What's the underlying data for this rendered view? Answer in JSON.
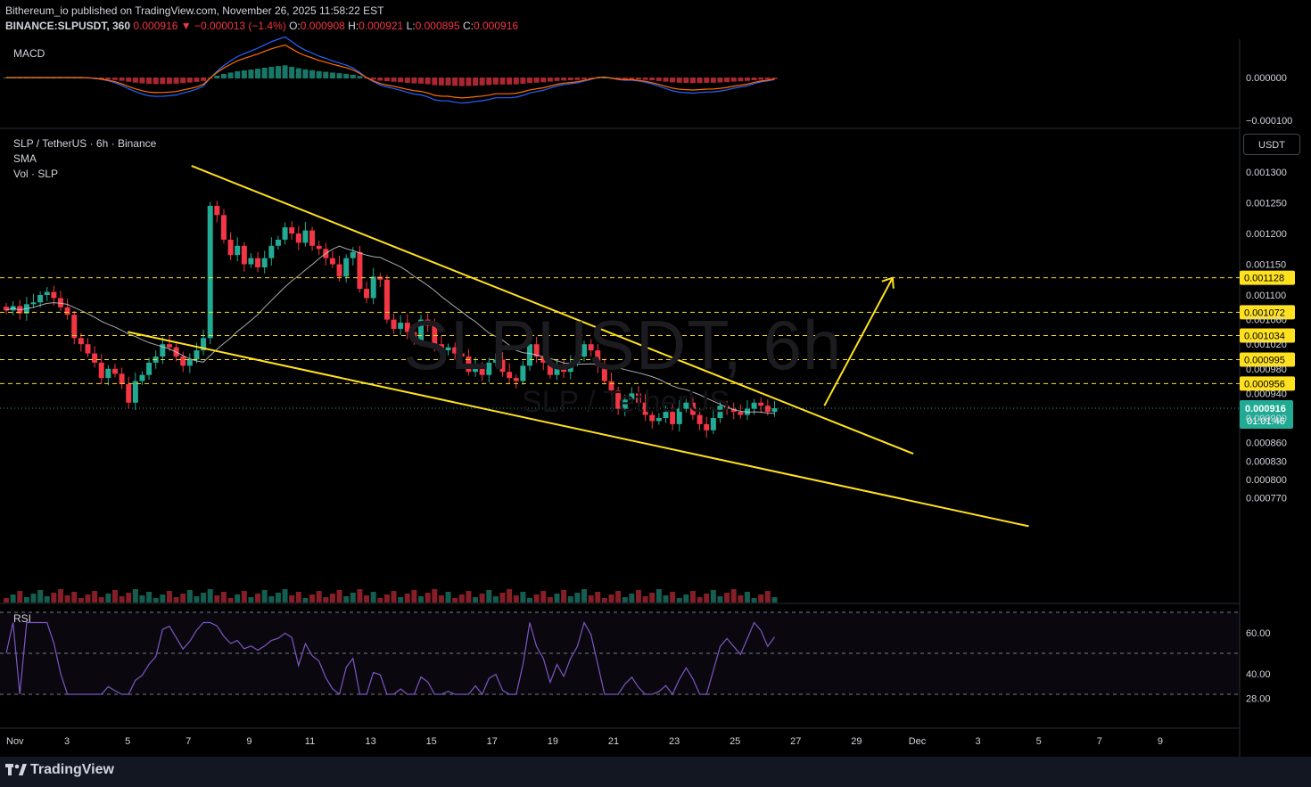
{
  "header": {
    "publisher_line": "Bithereum_io published on TradingView.com, November 26, 2025 11:58:22 EST",
    "symbol": "BINANCE:SLPUSDT, 360",
    "last": "0.000916",
    "change": "▼ −0.000013 (−1.4%)",
    "o_label": "O:",
    "o": "0.000908",
    "h_label": "H:",
    "h": "0.000921",
    "l_label": "L:",
    "l": "0.000895",
    "c_label": "C:",
    "c": "0.000916"
  },
  "panes": {
    "macd_label": "MACD",
    "price_title": "SLP / TetherUS · 6h · Binance",
    "sma_label": "SMA",
    "vol_label": "Vol · SLP",
    "rsi_label": "RSI"
  },
  "watermark": {
    "main": "SLPUSDT, 6h",
    "sub": "SLP / TetherUS"
  },
  "currency_button": "USDT",
  "footer": {
    "brand": "TradingView"
  },
  "colors": {
    "up": "#22ab94",
    "down": "#f23645",
    "trendline": "#ffe11f",
    "macd": "#2962ff",
    "signal": "#ff6d00",
    "rsi": "#7e57c2",
    "sma": "#d1d4dc"
  },
  "chart_data": {
    "type": "candlestick",
    "timeframe": "6h",
    "price_axis": {
      "ticks": [
        0.0013,
        0.00125,
        0.0012,
        0.00115,
        0.0011,
        0.00106,
        0.00102,
        0.00098,
        0.00094,
        0.0009,
        0.00086,
        0.00083,
        0.0008,
        0.00077
      ],
      "tick_labels": [
        "0.001300",
        "0.001250",
        "0.001200",
        "0.001150",
        "0.001100",
        "0.001060",
        "0.001020",
        "0.000980",
        "0.000940",
        "0.000900",
        "0.000860",
        "0.000830",
        "0.000800",
        "0.000770"
      ]
    },
    "horizontal_levels": [
      {
        "value": 0.001128,
        "label": "0.001128"
      },
      {
        "value": 0.001072,
        "label": "0.001072"
      },
      {
        "value": 0.001034,
        "label": "0.001034"
      },
      {
        "value": 0.000995,
        "label": "0.000995"
      },
      {
        "value": 0.000956,
        "label": "0.000956"
      }
    ],
    "last_price": {
      "value": 0.000916,
      "label": "0.000916",
      "countdown": "01:01:46"
    },
    "macd_axis": {
      "ticks": [
        0.0,
        -0.0001
      ],
      "tick_labels": [
        "0.000000",
        "−0.000100"
      ]
    },
    "rsi_axis": {
      "ticks": [
        60,
        40,
        28
      ],
      "tick_labels": [
        "60.00",
        "40.00",
        "28.00"
      ],
      "bands": [
        70,
        50,
        30
      ]
    },
    "x_axis": {
      "tick_labels": [
        "Nov",
        "3",
        "5",
        "7",
        "9",
        "11",
        "13",
        "15",
        "17",
        "19",
        "21",
        "23",
        "25",
        "27",
        "29",
        "Dec",
        "3",
        "5",
        "7",
        "9"
      ],
      "tick_days": [
        1,
        3,
        5,
        7,
        9,
        11,
        13,
        15,
        17,
        19,
        21,
        23,
        25,
        27,
        29,
        31,
        33,
        35,
        37,
        39
      ]
    },
    "candles_close": [
      0.001075,
      0.001082,
      0.00107,
      0.001085,
      0.001088,
      0.0011,
      0.001105,
      0.001095,
      0.00108,
      0.001068,
      0.00103,
      0.00102,
      0.001005,
      0.00099,
      0.000965,
      0.00098,
      0.000972,
      0.000955,
      0.000925,
      0.00096,
      0.00097,
      0.00099,
      0.001,
      0.00102,
      0.001015,
      0.001,
      0.000985,
      0.000995,
      0.00101,
      0.00103,
      0.001245,
      0.00123,
      0.00119,
      0.001165,
      0.00118,
      0.00115,
      0.00116,
      0.001145,
      0.00116,
      0.00118,
      0.00119,
      0.00121,
      0.0012,
      0.001185,
      0.001205,
      0.00118,
      0.001175,
      0.00116,
      0.00115,
      0.00113,
      0.00116,
      0.00117,
      0.00111,
      0.001095,
      0.00113,
      0.001125,
      0.00106,
      0.001045,
      0.001055,
      0.00104,
      0.001025,
      0.00106,
      0.00105,
      0.00102,
      0.00101,
      0.001015,
      0.001005,
      0.001,
      0.000975,
      0.000985,
      0.00097,
      0.00099,
      0.000995,
      0.000975,
      0.000965,
      0.00096,
      0.000985,
      0.00102,
      0.001,
      0.00099,
      0.00097,
      0.000985,
      0.000975,
      0.00099,
      0.001,
      0.00102,
      0.00101,
      0.000985,
      0.00096,
      0.000945,
      0.000915,
      0.00093,
      0.00094,
      0.000925,
      0.000905,
      0.000895,
      0.0009,
      0.00091,
      0.00089,
      0.000915,
      0.000925,
      0.000905,
      0.00089,
      0.00088,
      0.0009,
      0.00092,
      0.000915,
      0.00091,
      0.000905,
      0.000915,
      0.000925,
      0.00092,
      0.00091,
      0.000916
    ],
    "trendlines": [
      {
        "from_day": 7.1,
        "from": 0.00131,
        "to_day": 27.2,
        "to": 0.00091,
        "label": "upper"
      },
      {
        "from_day": 5.0,
        "from": 0.00104,
        "to_day": 31.0,
        "to": 0.00084,
        "label": "lower"
      }
    ],
    "projection_arrow": {
      "from_day": 28.0,
      "from": 0.00092,
      "to_day": 30.1,
      "to": 0.001128
    }
  }
}
